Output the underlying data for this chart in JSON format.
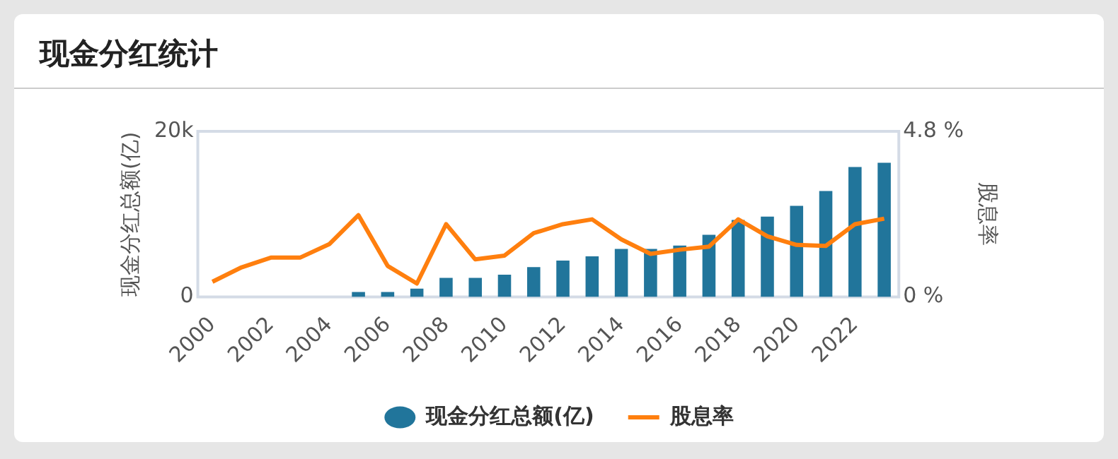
{
  "chart_data": {
    "type": "bar",
    "title": "现金分红统计",
    "categories": [
      "2000",
      null,
      "2002",
      null,
      "2004",
      null,
      "2006",
      null,
      "2008",
      null,
      "2010",
      null,
      "2012",
      null,
      "2014",
      null,
      "2016",
      null,
      "2018",
      null,
      "2020",
      null,
      "2022",
      null
    ],
    "series": [
      {
        "name": "现金分红总额(亿)",
        "color": "#21759b",
        "values": [
          0,
          0,
          0,
          0,
          0,
          600,
          600,
          1000,
          2300,
          2300,
          2700,
          3600,
          4400,
          4900,
          5800,
          5800,
          6200,
          7500,
          9300,
          9700,
          11000,
          12800,
          15700,
          16200
        ]
      },
      {
        "name": "股息率",
        "type": "line",
        "axis": "y2",
        "color": "#ff7f0e",
        "values": [
          0.44,
          0.86,
          1.14,
          1.14,
          1.53,
          2.37,
          0.9,
          0.39,
          2.11,
          1.09,
          1.2,
          1.85,
          2.11,
          2.25,
          1.67,
          1.25,
          1.37,
          1.46,
          2.25,
          1.76,
          1.51,
          1.48,
          2.11,
          2.27
        ]
      }
    ],
    "ylabel": "现金分红总额(亿)",
    "y2label": "股息率",
    "ylim": [
      0,
      20000
    ],
    "yticks": [
      {
        "value": 0,
        "label": "0"
      },
      {
        "value": 20000,
        "label": "20k"
      }
    ],
    "y2lim": [
      0,
      4.8
    ],
    "y2ticks": [
      {
        "value": 0,
        "label": "0 %"
      },
      {
        "value": 4.8,
        "label": "4.8 %"
      }
    ],
    "grid": false,
    "legend": "bottom",
    "marker": "none"
  }
}
